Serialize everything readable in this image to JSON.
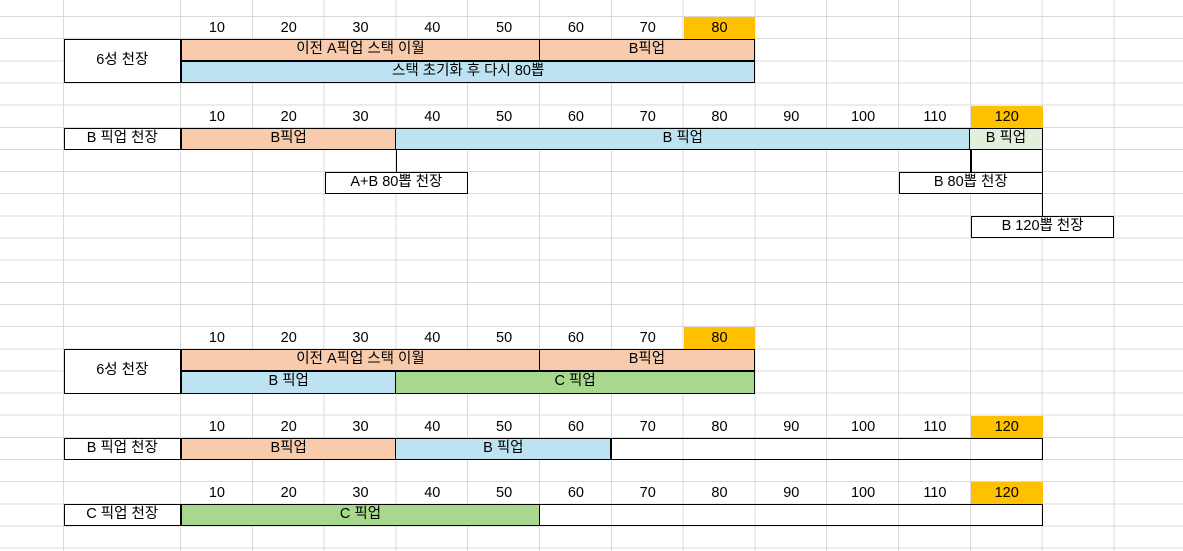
{
  "app": {
    "type": "spreadsheet-sheet",
    "background": "#FFFFFF",
    "gridline_color": "#D9D9D9",
    "cell_border_color": "#000000",
    "text_color": "#000000"
  },
  "palette": {
    "salmon": "#F8CBAD",
    "blue": "#BDE2F2",
    "green": "#A8D88E",
    "pale_green": "#E2EFDA",
    "orange": "#FFC000",
    "none": "transparent"
  },
  "chart_data": {
    "type": "gantt-table",
    "tick_unit": 10,
    "sections": [
      {
        "name": "six-star-ceiling-top",
        "header_row": 1,
        "ticks": [
          10,
          20,
          30,
          40,
          50,
          60,
          70,
          80
        ],
        "highlight_tick": 80,
        "row_label": {
          "text": "6성 천장",
          "rows": [
            2,
            3
          ]
        },
        "bar_rows": [
          {
            "row": 2,
            "segments": [
              {
                "label": "이전 A픽업 스택 이월",
                "color": "salmon",
                "from": 10,
                "to": 50
              },
              {
                "label": "B픽업",
                "color": "salmon",
                "from": 60,
                "to": 80
              }
            ]
          },
          {
            "row": 3,
            "segments": [
              {
                "label": "스택 초기화 후 다시 80뽑",
                "color": "blue",
                "from": 10,
                "to": 80
              }
            ]
          }
        ],
        "connectors": [],
        "callouts": []
      },
      {
        "name": "b-pickup-ceiling-top",
        "header_row": 5,
        "ticks": [
          10,
          20,
          30,
          40,
          50,
          60,
          70,
          80,
          90,
          100,
          110,
          120
        ],
        "highlight_tick": 120,
        "row_label": {
          "text": "B 픽업 천장",
          "rows": [
            6
          ]
        },
        "bar_rows": [
          {
            "row": 6,
            "segments": [
              {
                "label": "B픽업",
                "color": "salmon",
                "from": 10,
                "to": 30
              },
              {
                "label": "B 픽업",
                "color": "blue",
                "from": 40,
                "to": 110
              },
              {
                "label": "B 픽업",
                "color": "pale_green",
                "from": 120,
                "to": 120
              }
            ]
          }
        ],
        "connectors": [
          {
            "tick": 40,
            "edge": "left",
            "row": 7
          },
          {
            "tick": 120,
            "edge": "left",
            "row": 7
          },
          {
            "tick": 120,
            "edge": "right",
            "row": 7
          },
          {
            "tick": 120,
            "edge": "right",
            "row": 9
          }
        ],
        "callouts": [
          {
            "label": "A+B 80뽑 천장",
            "row": 8,
            "from": 30,
            "to": 40
          },
          {
            "label": "B 80뽑 천장",
            "row": 8,
            "from": 110,
            "to": 120
          },
          {
            "label": "B 120뽑 천장",
            "row": 10,
            "from": 120,
            "to": 130
          }
        ]
      },
      {
        "name": "six-star-ceiling-bottom",
        "header_row": 15,
        "ticks": [
          10,
          20,
          30,
          40,
          50,
          60,
          70,
          80
        ],
        "highlight_tick": 80,
        "row_label": {
          "text": "6성 천장",
          "rows": [
            16,
            17
          ]
        },
        "bar_rows": [
          {
            "row": 16,
            "segments": [
              {
                "label": "이전 A픽업 스택 이월",
                "color": "salmon",
                "from": 10,
                "to": 50
              },
              {
                "label": "B픽업",
                "color": "salmon",
                "from": 60,
                "to": 80
              }
            ]
          },
          {
            "row": 17,
            "segments": [
              {
                "label": "B 픽업",
                "color": "blue",
                "from": 10,
                "to": 30
              },
              {
                "label": "C 픽업",
                "color": "green",
                "from": 40,
                "to": 80
              }
            ]
          }
        ],
        "connectors": [],
        "callouts": []
      },
      {
        "name": "b-pickup-ceiling-bottom",
        "header_row": 19,
        "ticks": [
          10,
          20,
          30,
          40,
          50,
          60,
          70,
          80,
          90,
          100,
          110,
          120
        ],
        "highlight_tick": 120,
        "row_label": {
          "text": "B 픽업 천장",
          "rows": [
            20
          ]
        },
        "bar_rows": [
          {
            "row": 20,
            "segments": [
              {
                "label": "B픽업",
                "color": "salmon",
                "from": 10,
                "to": 30
              },
              {
                "label": "B 픽업",
                "color": "blue",
                "from": 40,
                "to": 60
              },
              {
                "label": "",
                "color": "none",
                "from": 70,
                "to": 120
              }
            ]
          }
        ],
        "connectors": [],
        "callouts": []
      },
      {
        "name": "c-pickup-ceiling",
        "header_row": 22,
        "ticks": [
          10,
          20,
          30,
          40,
          50,
          60,
          70,
          80,
          90,
          100,
          110,
          120
        ],
        "highlight_tick": 120,
        "row_label": {
          "text": "C 픽업 천장",
          "rows": [
            23
          ]
        },
        "bar_rows": [
          {
            "row": 23,
            "segments": [
              {
                "label": "C 픽업",
                "color": "green",
                "from": 10,
                "to": 50
              },
              {
                "label": "",
                "color": "none",
                "from": 60,
                "to": 120
              }
            ]
          }
        ],
        "connectors": [],
        "callouts": []
      }
    ]
  }
}
